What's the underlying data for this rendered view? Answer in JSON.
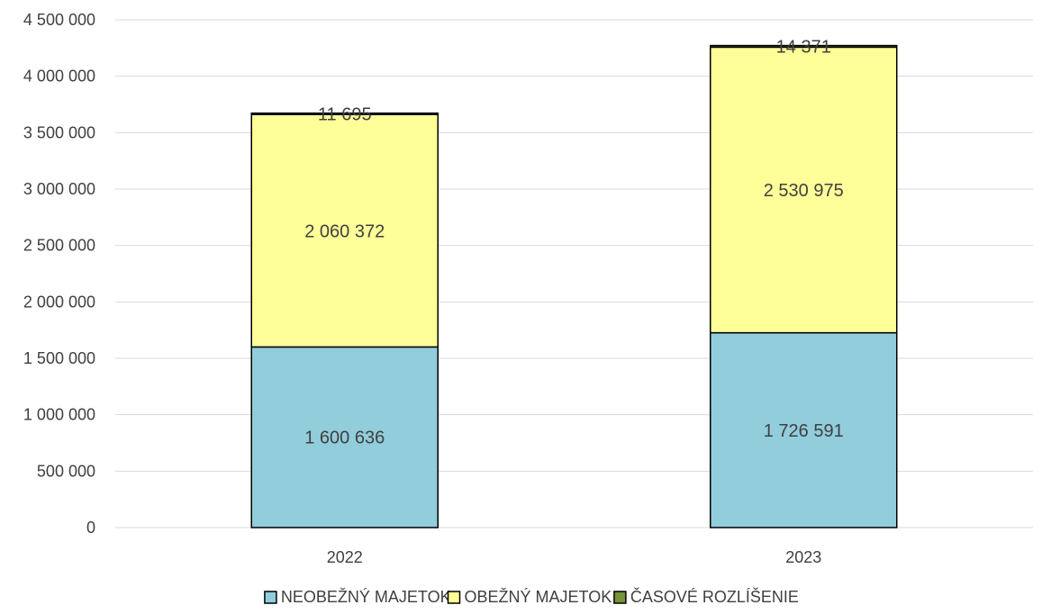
{
  "chart_data": {
    "type": "bar",
    "stacked": true,
    "title": "",
    "xlabel": "",
    "ylabel": "",
    "categories": [
      "2022",
      "2023"
    ],
    "ylim": [
      0,
      4500000
    ],
    "yticks": [
      0,
      500000,
      1000000,
      1500000,
      2000000,
      2500000,
      3000000,
      3500000,
      4000000,
      4500000
    ],
    "ytick_labels": [
      "0",
      "500 000",
      "1 000 000",
      "1 500 000",
      "2 000 000",
      "2 500 000",
      "3 000 000",
      "3 500 000",
      "4 000 000",
      "4 500 000"
    ],
    "grid": true,
    "legend_position": "bottom",
    "series": [
      {
        "name": "NEOBEŽNÝ MAJETOK",
        "color": "#92CDDC",
        "values": [
          1600636,
          1726591
        ],
        "labels": [
          "1 600 636",
          "1 726 591"
        ]
      },
      {
        "name": "OBEŽNÝ MAJETOK",
        "color": "#FFFF99",
        "values": [
          2060372,
          2530975
        ],
        "labels": [
          "2 060 372",
          "2 530 975"
        ]
      },
      {
        "name": "ČASOVÉ ROZLÍŠENIE",
        "color": "#77933C",
        "values": [
          11695,
          14371
        ],
        "labels": [
          "11 695",
          "14 371"
        ]
      }
    ]
  }
}
